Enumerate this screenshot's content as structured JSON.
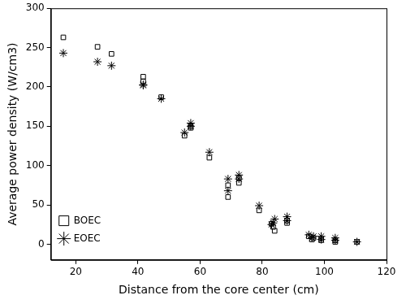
{
  "chart_data": {
    "type": "scatter",
    "x_label": "Distance from the core center (cm)",
    "y_label": "Average power density (W/cm3)",
    "xlim": [
      12,
      120
    ],
    "xticks": [
      20,
      40,
      60,
      80,
      100,
      120
    ],
    "ylim": [
      -20,
      300
    ],
    "yticks": [
      0,
      50,
      100,
      150,
      200,
      250,
      300
    ],
    "grid": false,
    "legend": "upper right",
    "series": [
      {
        "name": "BOEC",
        "color": "#000000",
        "marker": "square",
        "x": [
          16,
          27,
          31.5,
          41.7,
          41.7,
          47.5,
          55,
          57,
          57,
          63,
          69,
          69,
          72.5,
          72.5,
          79,
          83,
          84,
          83.5,
          88,
          88,
          95,
          96,
          96.5,
          99,
          99,
          103.5,
          103.5,
          110.5
        ],
        "values": [
          263,
          251,
          242,
          213,
          207,
          187,
          138,
          150,
          148,
          110,
          60,
          75,
          78,
          84,
          43,
          26,
          17,
          22,
          27,
          30,
          10,
          6,
          8,
          5,
          7,
          3,
          5,
          3
        ]
      },
      {
        "name": "EOEC",
        "color": "#000000",
        "marker": "star",
        "x": [
          16,
          27,
          31.5,
          41.7,
          41.7,
          47.5,
          55,
          57,
          57,
          63,
          69,
          69,
          72.5,
          72.5,
          79,
          83,
          84,
          83.5,
          88,
          88,
          95,
          96,
          96.5,
          99,
          99,
          103.5,
          103.5,
          110.5
        ],
        "values": [
          243,
          232,
          227,
          203,
          202,
          185,
          142,
          154,
          150,
          117,
          83,
          68,
          88,
          83,
          49,
          25,
          32,
          27,
          35,
          30,
          12,
          8,
          10,
          10,
          6,
          8,
          5,
          3
        ]
      }
    ]
  }
}
